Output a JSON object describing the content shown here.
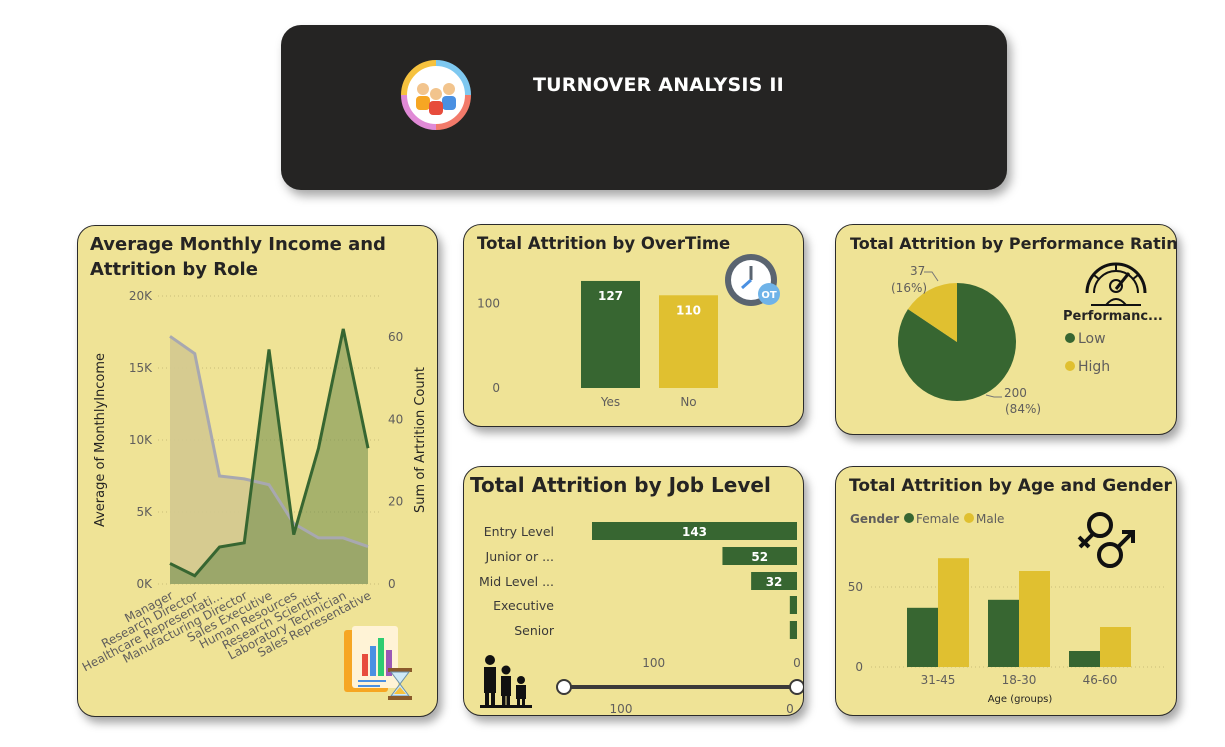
{
  "header": {
    "title": "TURNOVER ANALYSIS II"
  },
  "colors": {
    "green": "#376631",
    "yellow": "#e0c030",
    "card_bg": "#efe396",
    "header_bg": "#252423",
    "gray_line": "#a8a8b0"
  },
  "income_by_role": {
    "title_line1": "Average Monthly Income and",
    "title_line2": "Attrition by Role",
    "y_left_label": "Average of MonthlyIncome",
    "y_right_label": "Sum of Artrition Count",
    "y_left_ticks": [
      "0K",
      "5K",
      "10K",
      "15K",
      "20K"
    ],
    "y_right_ticks": [
      "0",
      "20",
      "40",
      "60"
    ]
  },
  "overtime": {
    "title": "Total Attrition by OverTime",
    "y_ticks": [
      "0",
      "100"
    ],
    "badge": "OT"
  },
  "performance": {
    "title": "Total Attrition by Performance Rating",
    "legend_title": "Performanc...",
    "slices": [
      {
        "name": "Low",
        "value": "200",
        "pct": "(84%)"
      },
      {
        "name": "High",
        "value": "37",
        "pct": "(16%)"
      }
    ]
  },
  "job_level": {
    "title": "Total Attrition by Job Level",
    "x_ticks": [
      "100",
      "0"
    ],
    "slider_labels": [
      "100",
      "0"
    ]
  },
  "age_gender": {
    "title": "Total Attrition by Age and Gender",
    "legend_title": "Gender",
    "legend_female": "Female",
    "legend_male": "Male",
    "y_ticks": [
      "0",
      "50"
    ],
    "x_title": "Age (groups)"
  },
  "chart_data": [
    {
      "type": "line",
      "title": "Average Monthly Income and Attrition by Role",
      "categories": [
        "Manager",
        "Research Director",
        "Healthcare Representati...",
        "Manufacturing Director",
        "Sales Executive",
        "Human Resources",
        "Research Scientist",
        "Laboratory Technician",
        "Sales Representative"
      ],
      "series": [
        {
          "name": "Average of MonthlyIncome",
          "axis": "left",
          "values": [
            17200,
            16000,
            7500,
            7300,
            6900,
            4200,
            3200,
            3200,
            2600
          ]
        },
        {
          "name": "Sum of Artrition Count",
          "axis": "right",
          "values": [
            5,
            2,
            9,
            10,
            57,
            12,
            33,
            62,
            33
          ]
        }
      ],
      "ylim_left": [
        0,
        20000
      ],
      "ylim_right": [
        0,
        70
      ]
    },
    {
      "type": "bar",
      "title": "Total Attrition by OverTime",
      "categories": [
        "Yes",
        "No"
      ],
      "values": [
        127,
        110
      ],
      "ylim": [
        0,
        140
      ]
    },
    {
      "type": "pie",
      "title": "Total Attrition by Performance Rating",
      "categories": [
        "Low",
        "High"
      ],
      "values": [
        200,
        37
      ]
    },
    {
      "type": "bar",
      "title": "Total Attrition by Job Level",
      "categories": [
        "Entry Level",
        "Junior or ...",
        "Mid Level ...",
        "Executive",
        "Senior"
      ],
      "values": [
        143,
        52,
        32,
        5,
        5
      ],
      "orientation": "horizontal",
      "xlim": [
        0,
        143
      ]
    },
    {
      "type": "bar",
      "title": "Total Attrition by Age and Gender",
      "categories": [
        "31-45",
        "18-30",
        "46-60"
      ],
      "series": [
        {
          "name": "Female",
          "values": [
            37,
            42,
            10
          ]
        },
        {
          "name": "Male",
          "values": [
            68,
            60,
            25
          ]
        }
      ],
      "ylim": [
        0,
        80
      ],
      "xlabel": "Age (groups)"
    }
  ]
}
